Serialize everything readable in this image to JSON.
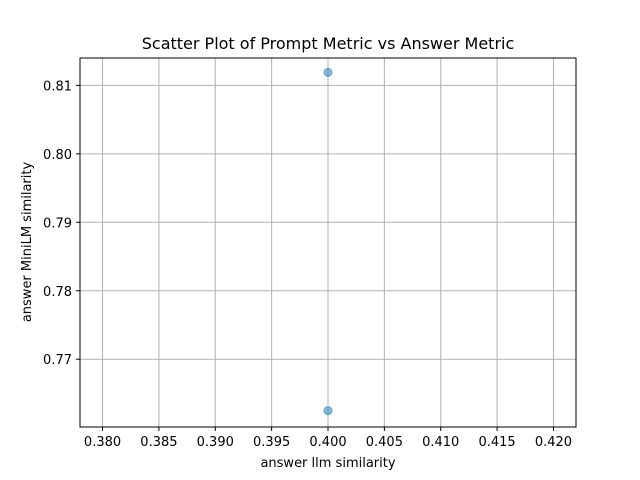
{
  "chart_data": {
    "type": "scatter",
    "title": "Scatter Plot of Prompt Metric vs Answer Metric",
    "xlabel": "answer llm similarity",
    "ylabel": "answer MiniLM similarity",
    "xlim": [
      0.378,
      0.422
    ],
    "ylim": [
      0.7601,
      0.814
    ],
    "xticks": [
      0.38,
      0.385,
      0.39,
      0.395,
      0.4,
      0.405,
      0.41,
      0.415,
      0.42
    ],
    "xtick_labels": [
      "0.380",
      "0.385",
      "0.390",
      "0.395",
      "0.400",
      "0.405",
      "0.410",
      "0.415",
      "0.420"
    ],
    "yticks": [
      0.77,
      0.78,
      0.79,
      0.8,
      0.81
    ],
    "ytick_labels": [
      "0.77",
      "0.78",
      "0.79",
      "0.80",
      "0.81"
    ],
    "grid": true,
    "marker_color": "#1f77b4",
    "points": [
      {
        "x": 0.4,
        "y": 0.8119
      },
      {
        "x": 0.4,
        "y": 0.7625
      }
    ]
  }
}
